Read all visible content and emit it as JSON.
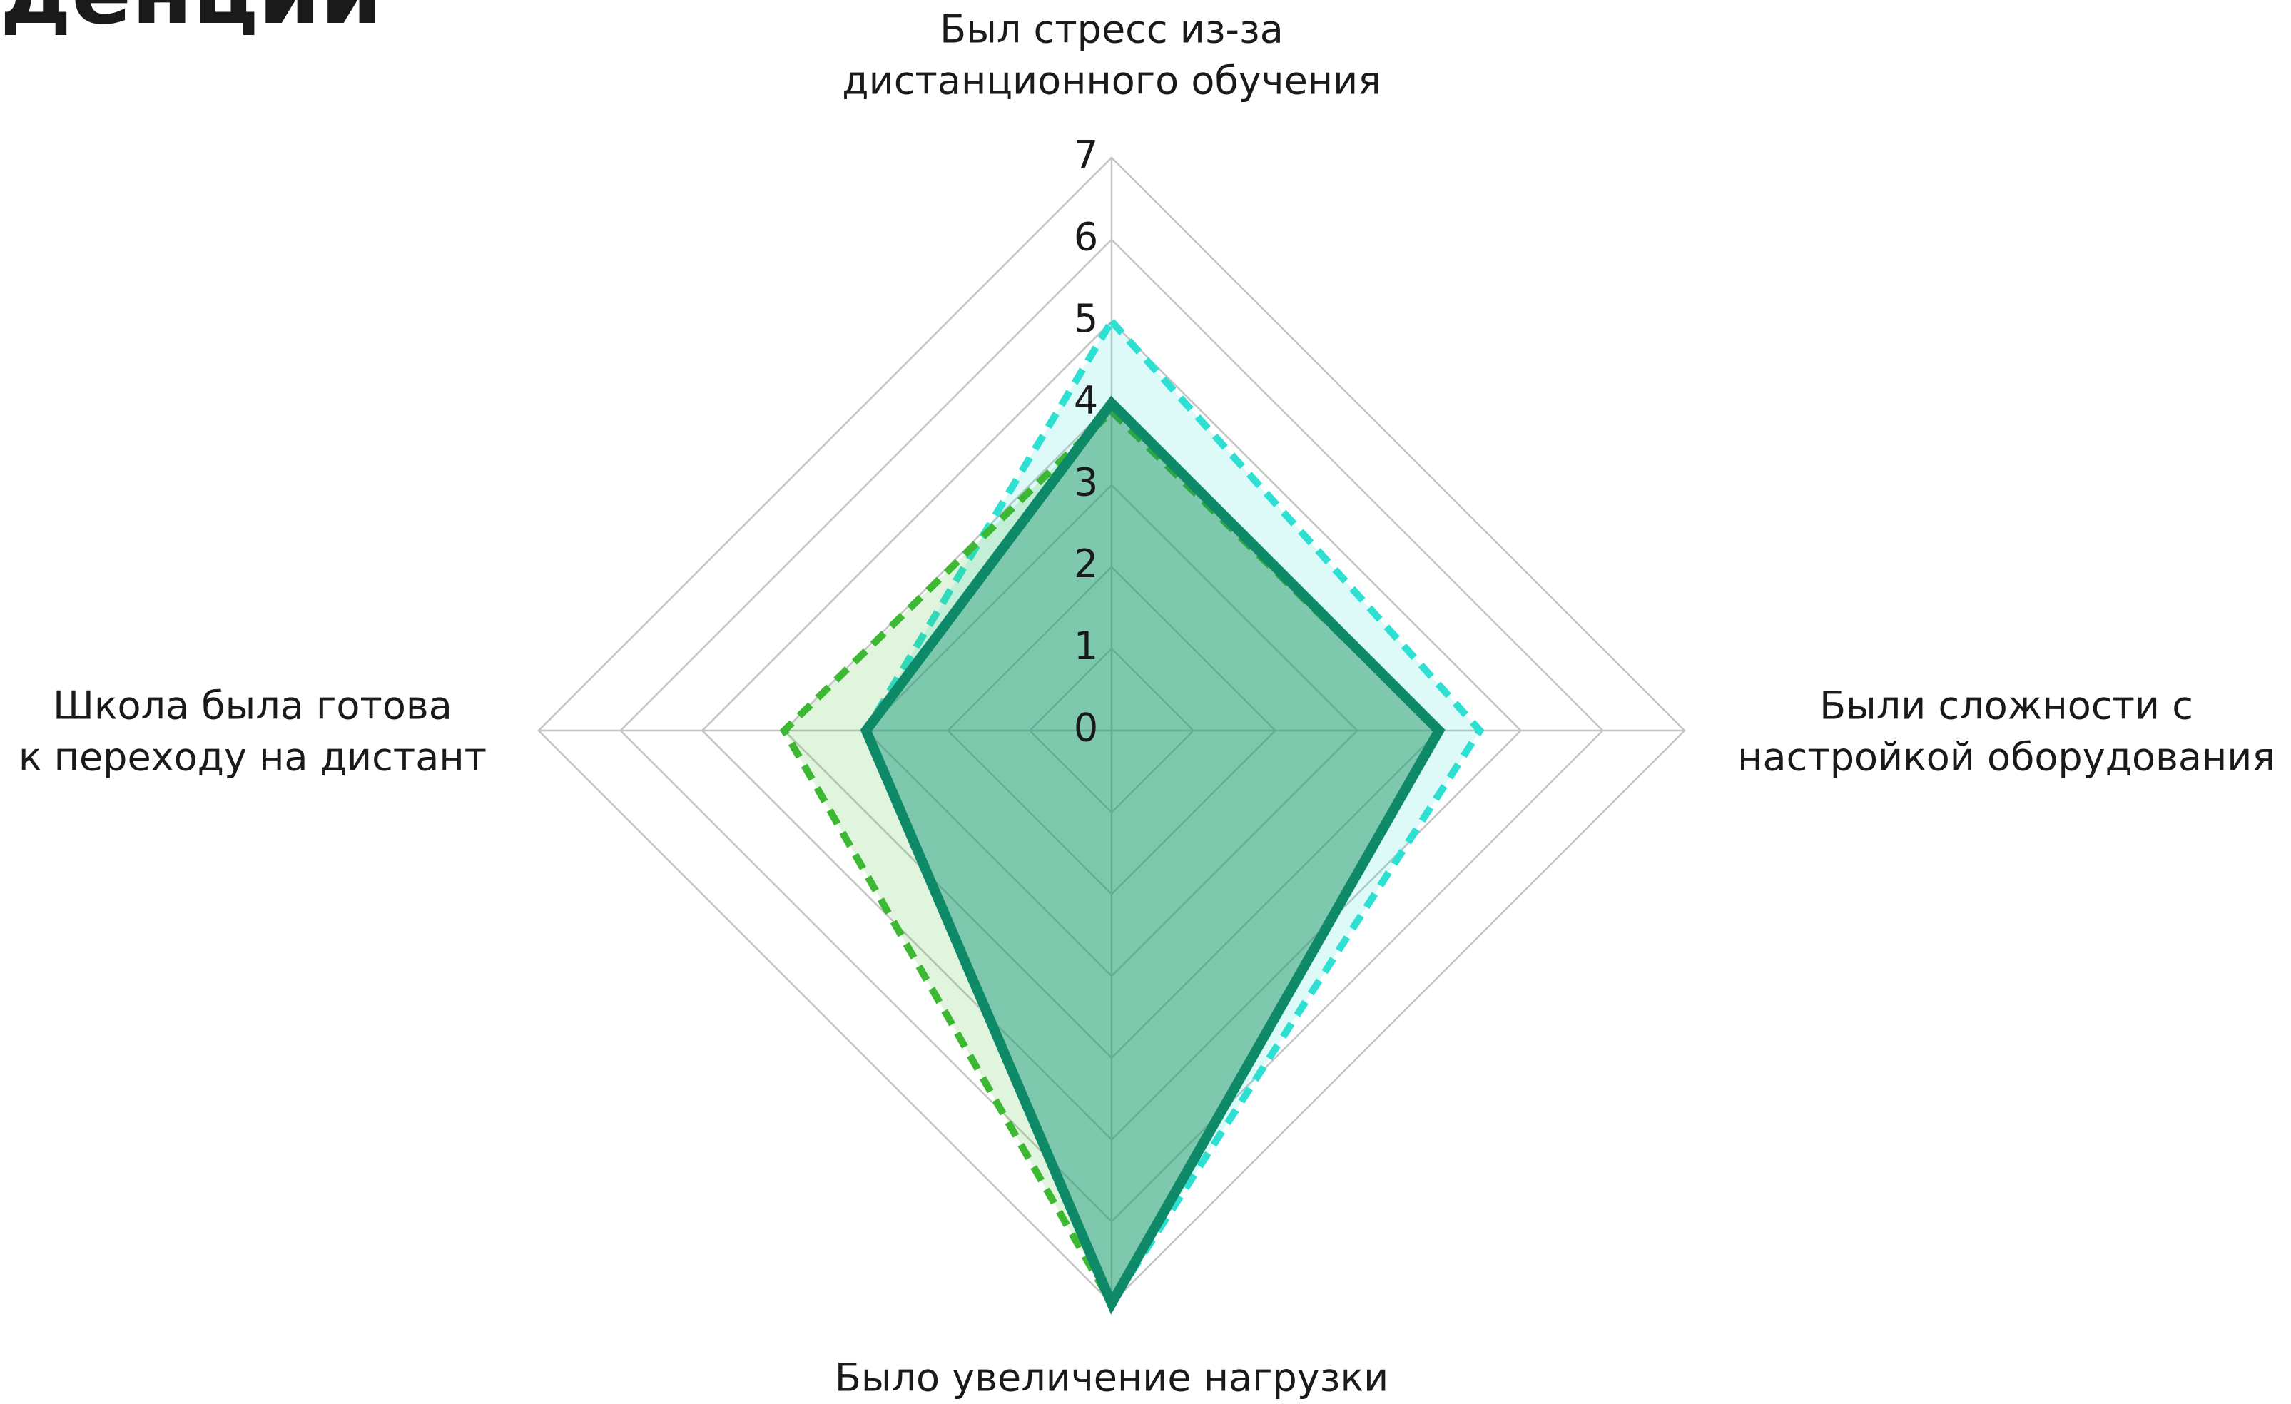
{
  "header": {
    "title": "денции"
  },
  "chart_data": {
    "type": "radar",
    "categories": [
      [
        "Был стресс из-за",
        "дистанционного обучения"
      ],
      [
        "Были сложности с",
        "настройкой оборудования"
      ],
      [
        "Было увеличение нагрузки"
      ],
      [
        "Школа была готова",
        "к переходу на дистант"
      ]
    ],
    "series": [
      {
        "color": "#2ee0d2",
        "dashed": true,
        "values": [
          5,
          4.5,
          7,
          3
        ]
      },
      {
        "color": "#3cb832",
        "dashed": true,
        "values": [
          3.9,
          4,
          7,
          4
        ]
      },
      {
        "color": "#0e8a68",
        "dashed": false,
        "values": [
          4,
          4,
          7,
          3
        ]
      }
    ],
    "ylim": [
      0,
      7
    ],
    "yticks": [
      0,
      1,
      2,
      3,
      4,
      5,
      6,
      7
    ],
    "grid": true
  }
}
